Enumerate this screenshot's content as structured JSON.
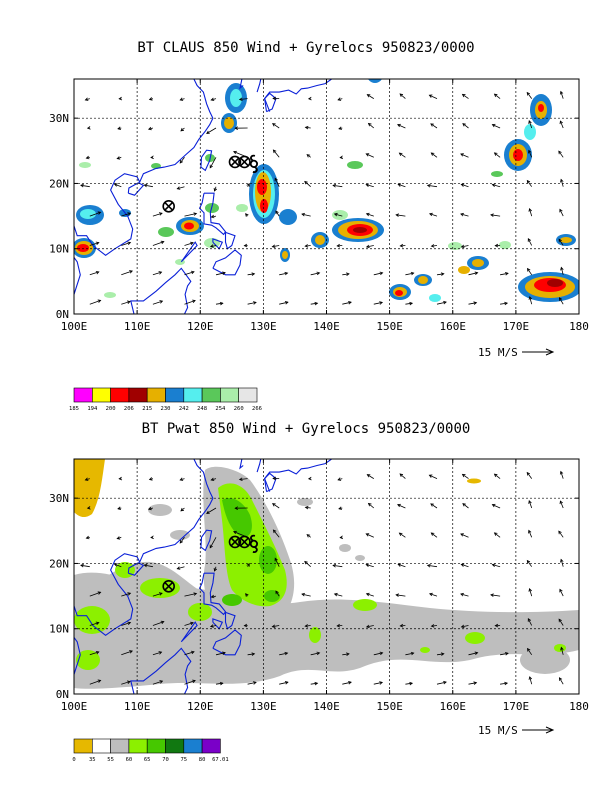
{
  "panels": [
    {
      "title": "BT CLAUS 850 Wind + Gyrelocs 950823/0000",
      "colorbar_labels": [
        "185",
        "194",
        "200",
        "206",
        "215",
        "230",
        "242",
        "248",
        "254",
        "260",
        "266"
      ],
      "colorbar_colors": [
        "#ff00ff",
        "#ffff00",
        "#ff0000",
        "#a00000",
        "#e6b000",
        "#1a7fd0",
        "#55eeee",
        "#5ac85a",
        "#aaeeaa",
        "#e6e6e6"
      ]
    },
    {
      "title": "BT Pwat 850 Wind + Gyrelocs 950823/0000",
      "colorbar_labels": [
        "0",
        "35",
        "55",
        "60",
        "65",
        "70",
        "75",
        "80",
        "67.01"
      ],
      "colorbar_colors": [
        "#e6b800",
        "#ffffff",
        "#bebebe",
        "#8cf000",
        "#46c800",
        "#117811",
        "#1a7fd0",
        "#7a00c8"
      ]
    }
  ],
  "axes": {
    "x_ticks": [
      "100E",
      "110E",
      "120E",
      "130E",
      "140E",
      "150E",
      "160E",
      "170E",
      "180"
    ],
    "y_ticks": [
      "0N",
      "10N",
      "20N",
      "30N"
    ],
    "ref_vector_label": "15 M/S"
  },
  "map": {
    "lon_range": [
      100,
      180
    ],
    "lat_range": [
      0,
      36
    ],
    "gyre_markers": [
      {
        "lon": 115,
        "lat": 16.5
      },
      {
        "lon": 125.5,
        "lat": 23.3
      },
      {
        "lon": 127,
        "lat": 23.3
      }
    ],
    "cyclone_symbol": {
      "lon": 128.5,
      "lat": 23
    }
  }
}
